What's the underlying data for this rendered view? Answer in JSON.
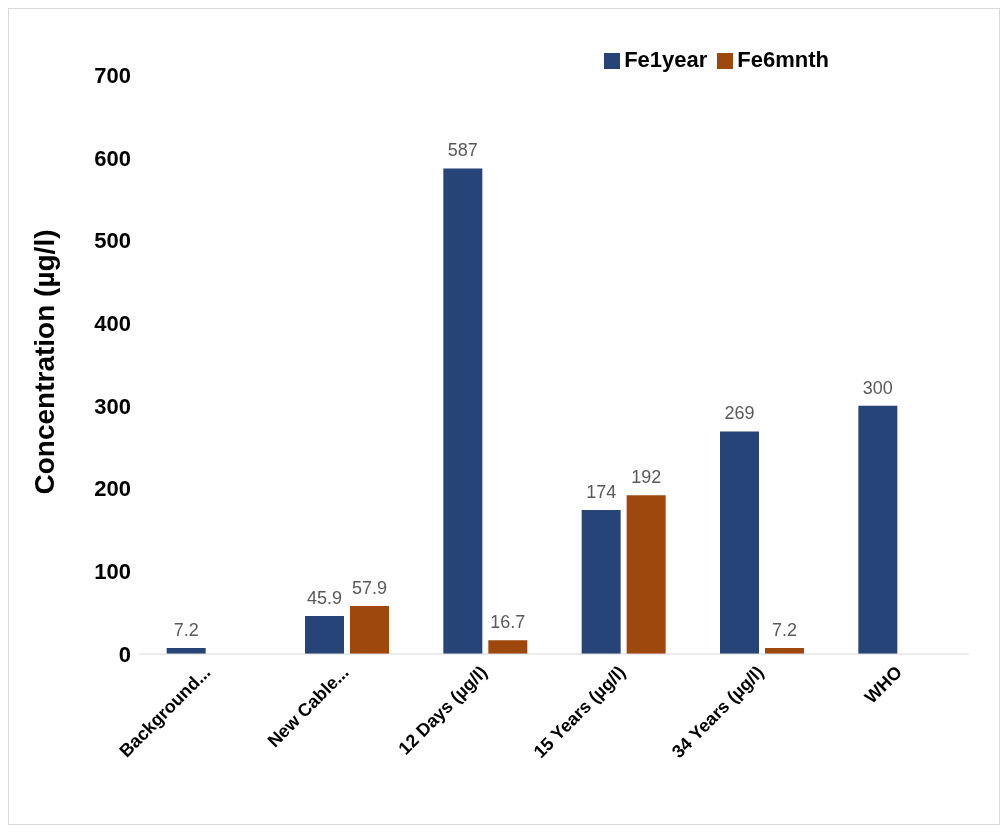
{
  "chart_data": {
    "type": "bar",
    "ylabel": "Concentration (µg/l)",
    "categories": [
      "Background...",
      "New Cable...",
      "12 Days (µg/l)",
      "15 Years (µg/l)",
      "34 Years (µg/l)",
      "WHO"
    ],
    "series": [
      {
        "name": "Fe1year",
        "color": "#264478",
        "values": [
          7.2,
          45.9,
          587,
          174,
          269,
          300
        ]
      },
      {
        "name": "Fe6mnth",
        "color": "#9e480e",
        "values": [
          null,
          57.9,
          16.7,
          192,
          7.2,
          null
        ]
      }
    ],
    "ylim": [
      0,
      700
    ],
    "yticks": [
      0,
      100,
      200,
      300,
      400,
      500,
      600,
      700
    ],
    "grid": false,
    "legend": "top right",
    "data_labels": true
  }
}
